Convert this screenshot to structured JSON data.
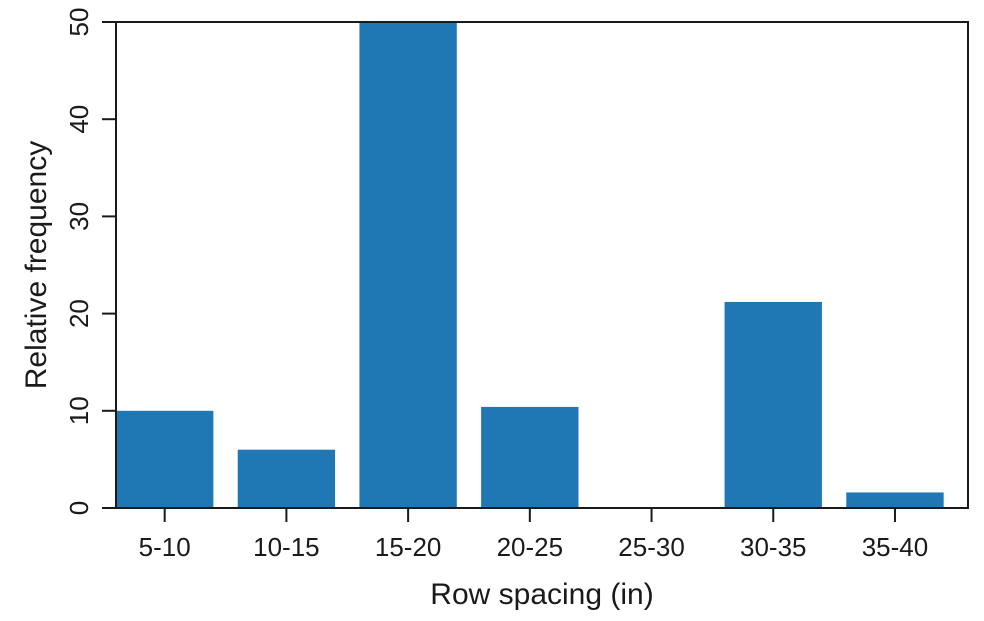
{
  "chart_data": {
    "type": "bar",
    "categories": [
      "5-10",
      "10-15",
      "15-20",
      "20-25",
      "25-30",
      "30-35",
      "35-40"
    ],
    "values": [
      10,
      6,
      50,
      10.4,
      0,
      21.2,
      1.6
    ],
    "title": "",
    "xlabel": "Row spacing (in)",
    "ylabel": "Relative frequency",
    "ylim": [
      0,
      50
    ],
    "yticks": [
      "0",
      "10",
      "20",
      "30",
      "40",
      "50"
    ],
    "grid": false,
    "legend": "none",
    "bar_color": "#1f77b4",
    "axis_color": "#1a1a1a"
  }
}
